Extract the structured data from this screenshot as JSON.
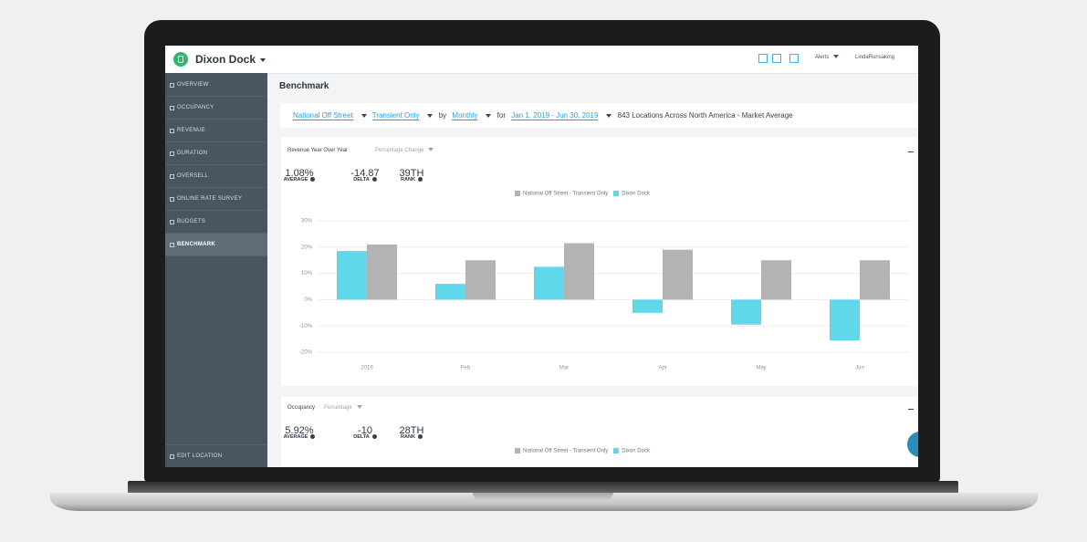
{
  "app": {
    "name": "Dixon Dock",
    "alerts": "Alerts",
    "user": "LindaRunsaking"
  },
  "nav": {
    "items": [
      "OVERVIEW",
      "OCCUPANCY",
      "REVENUE",
      "DURATION",
      "OVERSELL",
      "ONLINE RATE SURVEY",
      "BUDGETS",
      "BENCHMARK"
    ],
    "footer": "EDIT LOCATION"
  },
  "page": {
    "title": "Benchmark"
  },
  "filters": {
    "segment": "National Off Street",
    "type": "Transient Only",
    "by_label": "by",
    "period": "Monthly",
    "for_label": "for",
    "range": "Jan 1, 2019 - Jun 30, 2019",
    "summary": "843 Locations Across North America - Market Average"
  },
  "revenue_card": {
    "metric": "Percentage Change",
    "stats": [
      {
        "value": "1.08%",
        "label": "AVERAGE"
      },
      {
        "value": "-14.87",
        "label": "DELTA"
      },
      {
        "value": "39TH",
        "label": "RANK"
      }
    ]
  },
  "occupancy_card": {
    "title": "Occupancy",
    "metric": "Percentage",
    "stats": [
      {
        "value": "5.92%",
        "label": "AVERAGE"
      },
      {
        "value": "-10",
        "label": "DELTA"
      },
      {
        "value": "28TH",
        "label": "RANK"
      }
    ],
    "legend": [
      "National Off Street - Transient Only",
      "Dixon Dock"
    ]
  },
  "chart_data": {
    "type": "bar",
    "title": "Revenue Year Over Year",
    "categories": [
      "2019",
      "Feb",
      "Mar",
      "Apr",
      "May",
      "Jun"
    ],
    "series": [
      {
        "name": "National Off Street - Transient Only",
        "color": "#b3b3b3",
        "values": [
          21,
          15,
          21.5,
          19,
          15,
          15
        ]
      },
      {
        "name": "Dixon Dock",
        "color": "#5fd8ea",
        "values": [
          18.5,
          6,
          12.5,
          -5,
          -9.5,
          -15.5
        ]
      }
    ],
    "ylim": [
      -20,
      30
    ],
    "yticks": [
      {
        "value": -20,
        "label": "-20%"
      },
      {
        "value": -10,
        "label": "-10%"
      },
      {
        "value": 0,
        "label": "0%"
      },
      {
        "value": 10,
        "label": "10%"
      },
      {
        "value": 20,
        "label": "20%"
      },
      {
        "value": 30,
        "label": "30%"
      }
    ],
    "grid": true
  }
}
